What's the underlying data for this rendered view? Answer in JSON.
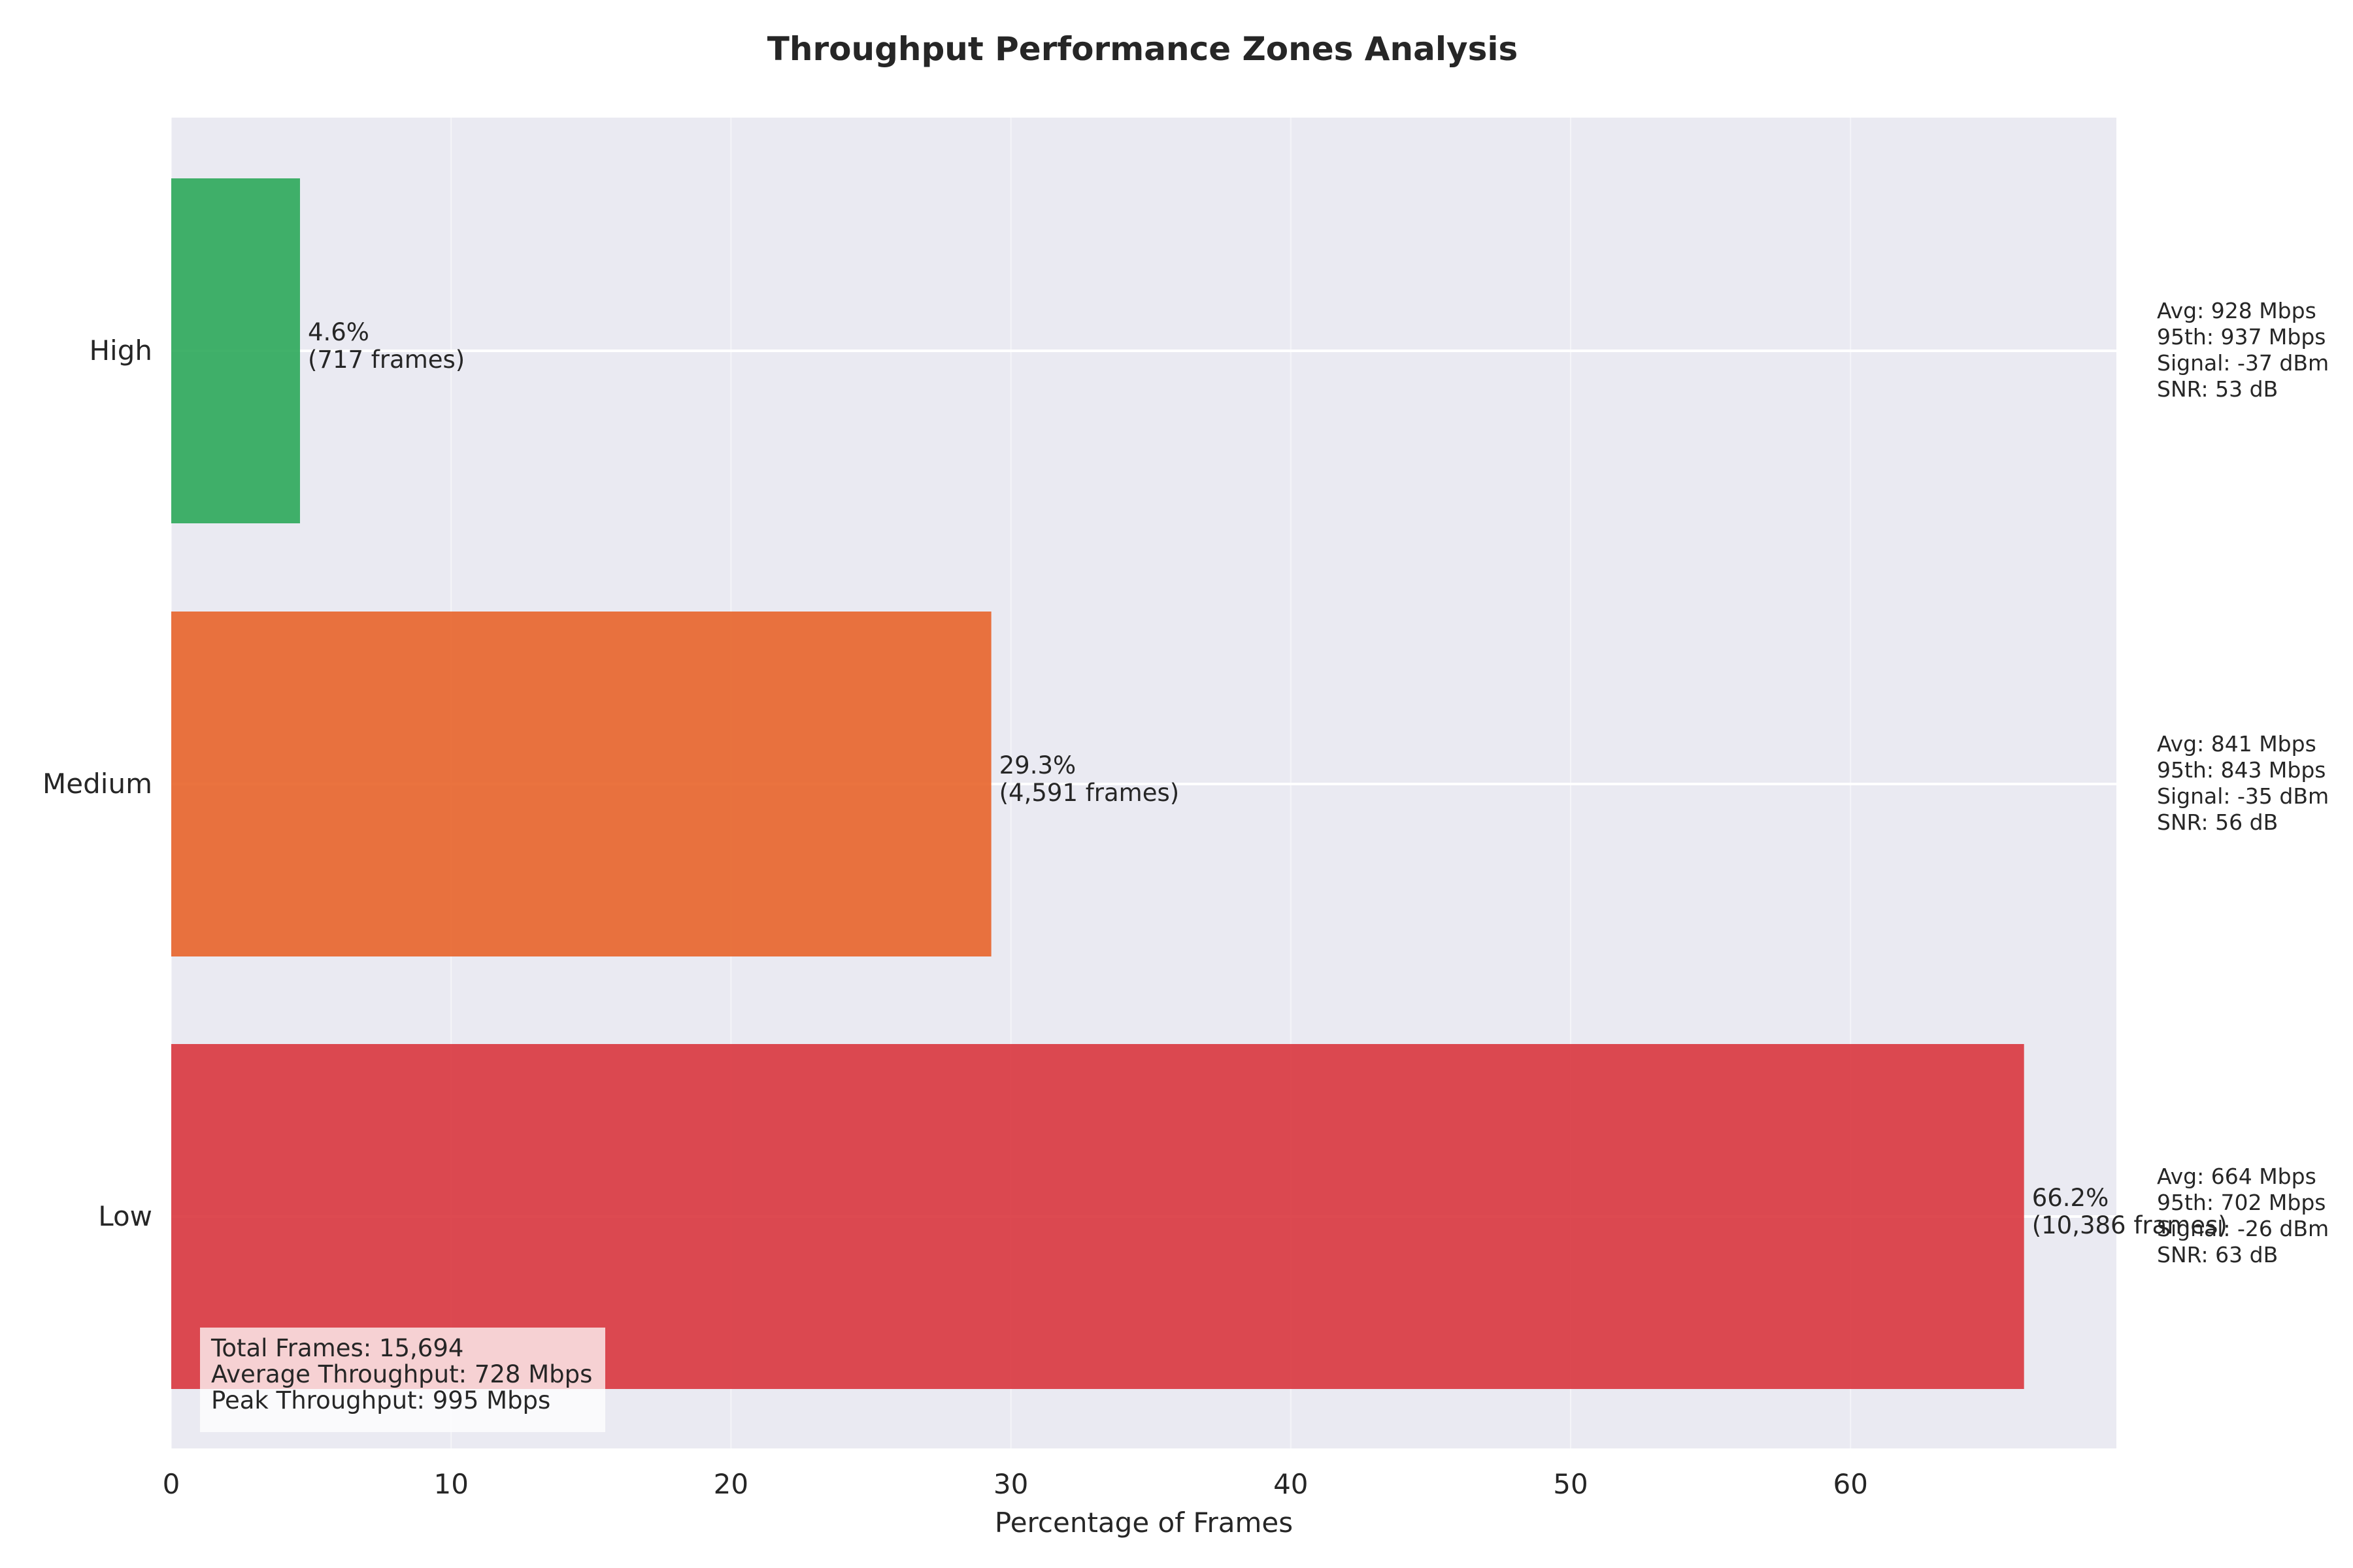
{
  "chart_data": {
    "type": "bar",
    "orientation": "horizontal",
    "title": "Throughput Performance Zones Analysis",
    "xlabel": "Percentage of Frames",
    "ylabel": "",
    "xlim": [
      0,
      69.5
    ],
    "xticks": [
      0,
      10,
      20,
      30,
      40,
      50,
      60
    ],
    "grid": true,
    "categories": [
      "Low",
      "Medium",
      "High"
    ],
    "values": [
      66.2,
      29.3,
      4.6
    ],
    "colors": [
      "#d9363e",
      "#e8642a",
      "#2ca85a"
    ],
    "bar_labels": [
      [
        "66.2%",
        "(10,386 frames)"
      ],
      [
        "29.3%",
        "(4,591 frames)"
      ],
      [
        "4.6%",
        "(717 frames)"
      ]
    ],
    "zone_stats": [
      [
        "Avg: 664 Mbps",
        "95th: 702 Mbps",
        "Signal: -26 dBm",
        "SNR: 63 dB"
      ],
      [
        "Avg: 841 Mbps",
        "95th: 843 Mbps",
        "Signal: -35 dBm",
        "SNR: 56 dB"
      ],
      [
        "Avg: 928 Mbps",
        "95th: 937 Mbps",
        "Signal: -37 dBm",
        "SNR: 53 dB"
      ]
    ],
    "summary": [
      "Total Frames: 15,694",
      "Average Throughput: 728 Mbps",
      "Peak Throughput: 995 Mbps"
    ]
  }
}
